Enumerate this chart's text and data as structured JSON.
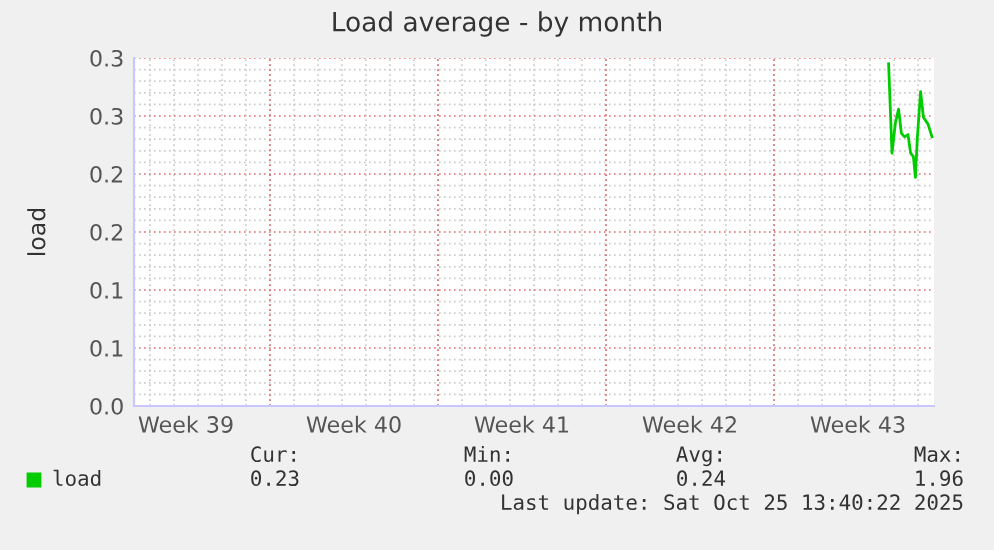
{
  "chart_data": {
    "type": "line",
    "title": "Load average - by month",
    "ylabel": "load",
    "x": [
      "2025-10-24T18:36",
      "2025-10-24T22:00",
      "2025-10-25T01:24",
      "2025-10-25T04:34",
      "2025-10-25T07:26",
      "2025-10-25T10:36",
      "2025-10-25T14:00",
      "2025-10-25T16:36",
      "2025-10-25T19:24",
      "2025-10-25T21:24",
      "2025-10-25T23:24",
      "2025-10-26T02:36",
      "2025-10-26T05:24",
      "2025-10-26T10:00",
      "2025-10-26T14:00"
    ],
    "series": [
      {
        "name": "load",
        "color": "#00cc00",
        "values": [
          0.295,
          0.218,
          0.244,
          0.256,
          0.235,
          0.232,
          0.234,
          0.218,
          0.215,
          0.197,
          0.232,
          0.271,
          0.249,
          0.243,
          0.232
        ]
      }
    ],
    "xlim": [
      "2025-09-23T08:00",
      "2025-10-26T16:00"
    ],
    "xticks": [
      {
        "value": "2025-09-25T12:00",
        "label": "Week 39"
      },
      {
        "value": "2025-09-29",
        "label": null
      },
      {
        "value": "2025-10-02T12:00",
        "label": "Week 40"
      },
      {
        "value": "2025-10-06",
        "label": null
      },
      {
        "value": "2025-10-09T12:00",
        "label": "Week 41"
      },
      {
        "value": "2025-10-13",
        "label": null
      },
      {
        "value": "2025-10-16T12:00",
        "label": "Week 42"
      },
      {
        "value": "2025-10-20",
        "label": null
      },
      {
        "value": "2025-10-23T12:00",
        "label": "Week 43"
      }
    ],
    "ylim": [
      0,
      0.3
    ],
    "yticks": [
      {
        "value": 0,
        "label": "0.0"
      },
      {
        "value": 0.05,
        "label": "0.1"
      },
      {
        "value": 0.1,
        "label": "0.1"
      },
      {
        "value": 0.15,
        "label": "0.2"
      },
      {
        "value": 0.2,
        "label": "0.2"
      },
      {
        "value": 0.25,
        "label": "0.3"
      },
      {
        "value": 0.3,
        "label": "0.3"
      }
    ],
    "grid": true,
    "legend": "bottom",
    "marker": "none",
    "line_style": "solid",
    "annotations": [
      "Cur:",
      "Min:",
      "Avg:",
      "Max:",
      "0.23",
      "0.00",
      "0.24",
      "1.96",
      "Last update: Sat Oct 25 13:40:22 2025"
    ]
  }
}
